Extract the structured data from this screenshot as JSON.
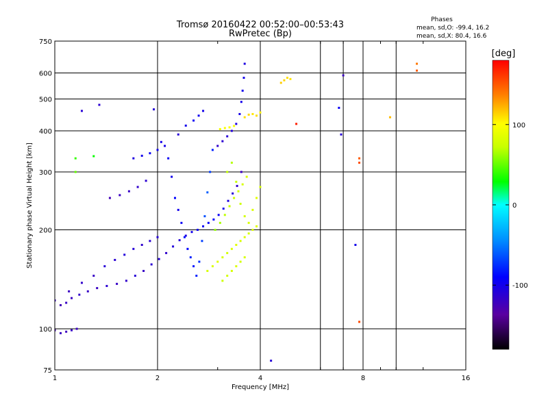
{
  "chart_data": {
    "type": "scatter",
    "title": "Tromsø 20160422 00:52:00–00:53:43",
    "subtitle": "RwPretec (Bp)",
    "xlabel": "Frequency [MHz]",
    "ylabel": "Stationary phase Virtual Height [km]",
    "x_scale": "log",
    "y_scale": "log",
    "xlim": [
      1,
      16
    ],
    "ylim": [
      75,
      750
    ],
    "x_ticks": [
      1,
      2,
      4,
      8,
      16
    ],
    "x_minor_ticks": [
      3,
      6,
      7,
      9,
      10,
      12
    ],
    "x_gridlines": [
      2,
      4,
      6,
      7,
      8,
      10
    ],
    "y_ticks": [
      75,
      100,
      200,
      300,
      400,
      500,
      600,
      750
    ],
    "y_gridlines": [
      100,
      200,
      300,
      400,
      500,
      600
    ],
    "grid": true,
    "legend": {
      "title": "Phases",
      "line1": "mean, sd,O: -99.4, 16.2",
      "line2": "mean, sd,X: 80.4, 16.6",
      "placement": "top-right"
    },
    "colorbar": {
      "label": "[deg]",
      "ticks": [
        100,
        0,
        -100
      ],
      "range": [
        -180,
        180
      ],
      "placement": "right"
    },
    "series": [
      {
        "trace": "O",
        "points": [
          [
            1.0,
            122,
            -120
          ],
          [
            1.04,
            118,
            -125
          ],
          [
            1.08,
            120,
            -118
          ],
          [
            1.12,
            124,
            -120
          ],
          [
            1.18,
            127,
            -115
          ],
          [
            1.25,
            130,
            -118
          ],
          [
            1.33,
            133,
            -120
          ],
          [
            1.42,
            135,
            -112
          ],
          [
            1.52,
            137,
            -118
          ],
          [
            1.62,
            140,
            -115
          ],
          [
            1.72,
            145,
            -110
          ],
          [
            1.82,
            150,
            -118
          ],
          [
            1.92,
            157,
            -112
          ],
          [
            2.02,
            163,
            -110
          ],
          [
            2.12,
            170,
            -115
          ],
          [
            2.22,
            178,
            -108
          ],
          [
            2.32,
            186,
            -110
          ],
          [
            2.42,
            192,
            -105
          ],
          [
            2.52,
            197,
            -100
          ],
          [
            2.62,
            200,
            -98
          ],
          [
            2.72,
            205,
            -95
          ],
          [
            2.82,
            210,
            -92
          ],
          [
            2.92,
            215,
            -90
          ],
          [
            3.02,
            222,
            -95
          ],
          [
            3.12,
            232,
            -100
          ],
          [
            3.22,
            245,
            -105
          ],
          [
            3.32,
            258,
            -110
          ],
          [
            3.42,
            272,
            -115
          ],
          [
            3.52,
            300,
            -120
          ],
          [
            1.0,
            99,
            -125
          ],
          [
            1.04,
            97,
            -120
          ],
          [
            1.08,
            98,
            -122
          ],
          [
            1.12,
            99,
            -118
          ],
          [
            1.16,
            100,
            -120
          ],
          [
            1.45,
            250,
            -125
          ],
          [
            1.55,
            255,
            -120
          ],
          [
            1.65,
            262,
            -118
          ],
          [
            1.75,
            270,
            -115
          ],
          [
            1.85,
            282,
            -112
          ],
          [
            1.7,
            330,
            -105
          ],
          [
            1.8,
            336,
            -100
          ],
          [
            1.9,
            342,
            -95
          ],
          [
            2.0,
            350,
            -98
          ],
          [
            2.1,
            360,
            -102
          ],
          [
            2.3,
            390,
            -110
          ],
          [
            2.42,
            415,
            -100
          ],
          [
            2.55,
            430,
            -95
          ],
          [
            2.64,
            445,
            -98
          ],
          [
            2.72,
            460,
            -100
          ],
          [
            3.0,
            360,
            -115
          ],
          [
            3.1,
            372,
            -112
          ],
          [
            3.2,
            385,
            -110
          ],
          [
            3.3,
            400,
            -108
          ],
          [
            3.4,
            420,
            -105
          ],
          [
            3.48,
            450,
            -102
          ],
          [
            3.52,
            490,
            -100
          ],
          [
            3.55,
            530,
            -98
          ],
          [
            3.58,
            580,
            -100
          ],
          [
            3.6,
            640,
            -105
          ],
          [
            1.2,
            460,
            -110
          ],
          [
            1.35,
            480,
            -112
          ],
          [
            1.95,
            465,
            -110
          ],
          [
            2.05,
            370,
            -100
          ],
          [
            2.15,
            330,
            -95
          ],
          [
            2.2,
            290,
            -100
          ],
          [
            2.25,
            250,
            -90
          ],
          [
            2.3,
            230,
            -100
          ],
          [
            2.35,
            210,
            -95
          ],
          [
            2.4,
            190,
            -85
          ],
          [
            2.45,
            175,
            -90
          ],
          [
            2.5,
            165,
            -80
          ],
          [
            2.55,
            155,
            -85
          ],
          [
            2.6,
            145,
            -80
          ],
          [
            2.65,
            160,
            -75
          ],
          [
            2.7,
            185,
            -70
          ],
          [
            2.75,
            220,
            -65
          ],
          [
            2.8,
            260,
            -60
          ],
          [
            2.85,
            300,
            -70
          ],
          [
            2.9,
            350,
            -80
          ],
          [
            1.1,
            130,
            -120
          ],
          [
            1.2,
            138,
            -115
          ],
          [
            1.3,
            145,
            -118
          ],
          [
            1.4,
            155,
            -110
          ],
          [
            1.5,
            162,
            -112
          ],
          [
            1.6,
            168,
            -108
          ],
          [
            1.7,
            175,
            -110
          ],
          [
            1.8,
            180,
            -115
          ],
          [
            1.9,
            185,
            -112
          ],
          [
            2.0,
            190,
            -110
          ],
          [
            4.3,
            80,
            -110
          ],
          [
            7.0,
            590,
            -120
          ],
          [
            6.8,
            470,
            -95
          ],
          [
            7.6,
            180,
            -100
          ],
          [
            6.9,
            390,
            -110
          ]
        ]
      },
      {
        "trace": "X",
        "points": [
          [
            2.8,
            150,
            80
          ],
          [
            2.9,
            155,
            82
          ],
          [
            3.0,
            160,
            85
          ],
          [
            3.1,
            165,
            80
          ],
          [
            3.2,
            170,
            78
          ],
          [
            3.3,
            175,
            82
          ],
          [
            3.4,
            180,
            85
          ],
          [
            3.5,
            185,
            80
          ],
          [
            3.6,
            190,
            83
          ],
          [
            3.7,
            195,
            78
          ],
          [
            3.8,
            200,
            82
          ],
          [
            3.9,
            205,
            85
          ],
          [
            2.95,
            200,
            60
          ],
          [
            3.05,
            210,
            65
          ],
          [
            3.15,
            222,
            70
          ],
          [
            3.25,
            236,
            72
          ],
          [
            3.35,
            250,
            75
          ],
          [
            3.45,
            262,
            78
          ],
          [
            3.55,
            275,
            80
          ],
          [
            3.65,
            290,
            82
          ],
          [
            3.05,
            405,
            95
          ],
          [
            3.15,
            408,
            98
          ],
          [
            3.25,
            410,
            100
          ],
          [
            3.35,
            414,
            96
          ],
          [
            3.6,
            440,
            110
          ],
          [
            3.7,
            448,
            112
          ],
          [
            3.8,
            450,
            108
          ],
          [
            3.9,
            445,
            110
          ],
          [
            4.0,
            455,
            105
          ],
          [
            4.6,
            560,
            115
          ],
          [
            4.7,
            570,
            112
          ],
          [
            4.8,
            580,
            110
          ],
          [
            4.9,
            575,
            108
          ],
          [
            3.2,
            300,
            70
          ],
          [
            3.3,
            320,
            68
          ],
          [
            3.4,
            280,
            72
          ],
          [
            3.5,
            240,
            75
          ],
          [
            3.6,
            220,
            78
          ],
          [
            3.7,
            210,
            80
          ],
          [
            3.8,
            230,
            82
          ],
          [
            3.9,
            250,
            85
          ],
          [
            4.0,
            270,
            80
          ],
          [
            3.1,
            140,
            75
          ],
          [
            3.2,
            145,
            78
          ],
          [
            3.3,
            150,
            80
          ],
          [
            3.4,
            155,
            82
          ],
          [
            3.5,
            160,
            78
          ],
          [
            3.6,
            165,
            80
          ],
          [
            11.5,
            640,
            140
          ],
          [
            11.5,
            610,
            150
          ],
          [
            7.8,
            330,
            150
          ],
          [
            7.8,
            320,
            155
          ],
          [
            7.8,
            105,
            155
          ],
          [
            1.15,
            330,
            40
          ],
          [
            1.15,
            300,
            50
          ],
          [
            1.3,
            335,
            30
          ],
          [
            5.1,
            420,
            170
          ],
          [
            9.6,
            440,
            120
          ]
        ]
      }
    ]
  }
}
